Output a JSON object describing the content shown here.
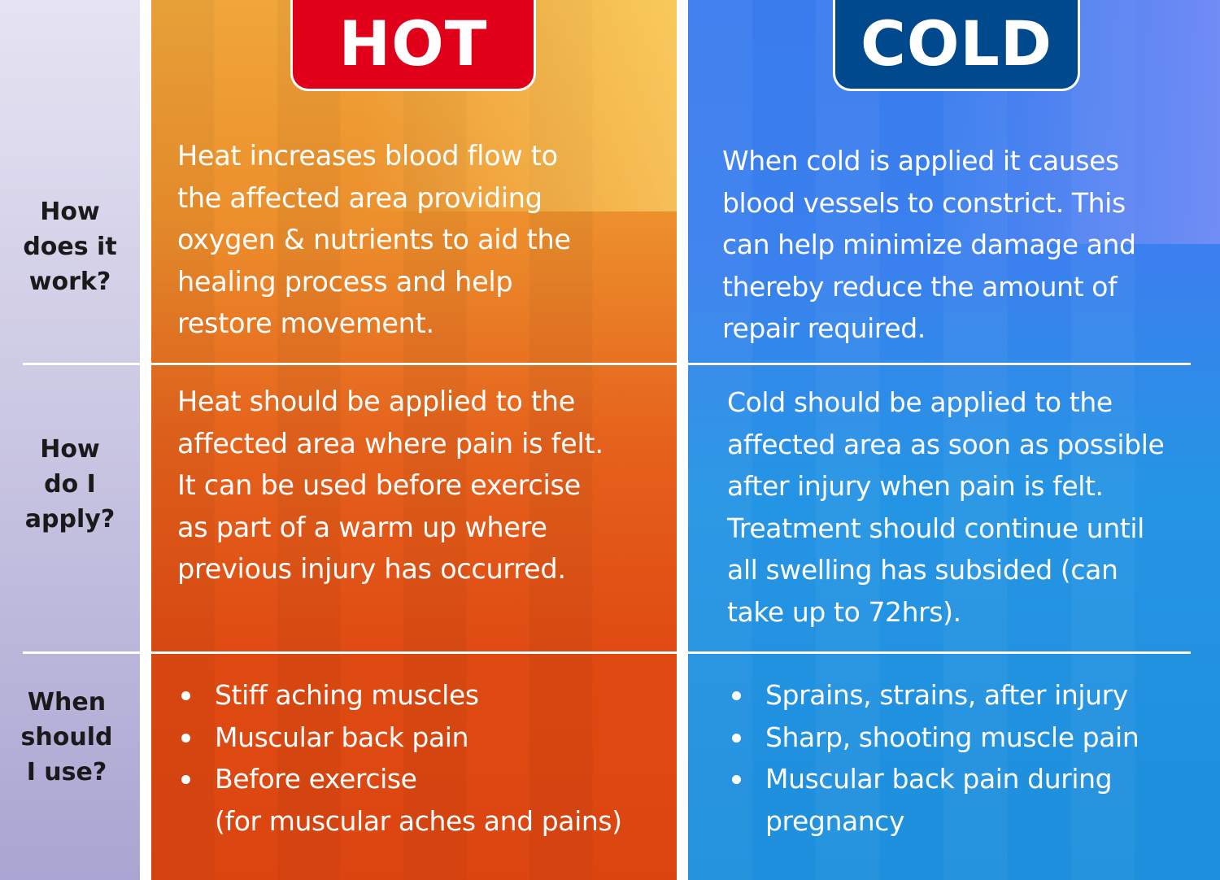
{
  "headers": {
    "hot": "HOT",
    "cold": "COLD"
  },
  "colors": {
    "hot_badge": "#e1001a",
    "cold_badge": "#00498c",
    "hot_top": "#f0a63a",
    "hot_bottom": "#dc4510",
    "cold_top": "#3a7cee",
    "cold_bottom": "#1d8fdc",
    "label_column": "#c9c6e2"
  },
  "rows": [
    {
      "label": [
        "How",
        "does it",
        "work?"
      ],
      "hot": [
        "Heat increases blood flow to",
        "the affected area providing",
        "oxygen & nutrients to aid the",
        "healing process and help",
        "restore movement."
      ],
      "cold": [
        "When cold is applied it causes",
        "blood vessels to constrict. This",
        "can help minimize damage and",
        "thereby reduce the amount of",
        "repair required."
      ]
    },
    {
      "label": [
        "How",
        "do I",
        "apply?"
      ],
      "hot": [
        "Heat should be applied to the",
        "affected area where pain is felt.",
        "It can be used before exercise",
        "as part of a warm up where",
        "previous injury has occurred."
      ],
      "cold": [
        "Cold should be applied to the",
        "affected area as soon as possible",
        "after injury when pain is felt.",
        "Treatment should continue until",
        "all swelling has subsided (can",
        "take up to 72hrs)."
      ]
    },
    {
      "label": [
        "When",
        "should",
        "I use?"
      ],
      "hot_bullets": [
        "Stiff aching muscles",
        "Muscular back pain",
        "Before exercise",
        "(for muscular aches and pains)"
      ],
      "cold_bullets": [
        "Sprains, strains, after injury",
        "Sharp, shooting muscle pain",
        "Muscular back pain during",
        "pregnancy"
      ]
    }
  ]
}
